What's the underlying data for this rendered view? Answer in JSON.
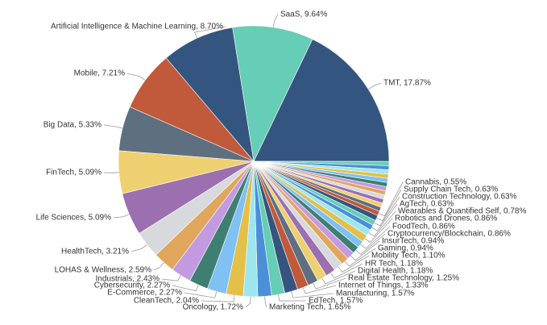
{
  "chart_data": {
    "type": "pie",
    "labels": [
      "TMT, 17.87%",
      null,
      null,
      null,
      null,
      null,
      null,
      null,
      null,
      null,
      null,
      null,
      null,
      "Cannabis, 0.55%",
      "Supply Chain Tech, 0.63%",
      "Construction Technology, 0.63%",
      "AgTech, 0.63%",
      "Wearables & Quantified Self, 0.78%",
      "Robotics and Drones, 0.86%",
      "FoodTech, 0.86%",
      "Cryptocurrency/Blockchain, 0.86%",
      "InsurTech, 0.94%",
      "Gaming, 0.94%",
      "Mobility Tech, 1.10%",
      "HR Tech, 1.18%",
      "Digital Health, 1.18%",
      "Real Estate Technology, 1.25%",
      "Internet of Things, 1.33%",
      "Manufacturing, 1.57%",
      "EdTech, 1.57%",
      "Marketing Tech, 1.65%",
      "Oncology, 1.72%",
      "CleanTech, 2.04%",
      "E-Commerce, 2.27%",
      "Cybersecurity, 2.27%",
      "Industrials, 2.43%",
      "LOHAS & Wellness, 2.59%",
      "HealthTech, 3.21%",
      "Life Sciences, 5.09%",
      "FinTech, 5.09%",
      "Big Data, 5.33%",
      "Mobile, 7.21%",
      "Artificial Intelligence & Machine Learning, 8.70%",
      "SaaS, 9.64%"
    ],
    "values": [
      17.87,
      0.5,
      0.5,
      0.5,
      0.5,
      0.5,
      0.5,
      0.5,
      0.5,
      0.5,
      0.5,
      0.5,
      0.5,
      0.55,
      0.63,
      0.63,
      0.63,
      0.78,
      0.86,
      0.86,
      0.86,
      0.94,
      0.94,
      1.1,
      1.18,
      1.18,
      1.25,
      1.33,
      1.57,
      1.57,
      1.65,
      1.72,
      2.04,
      2.27,
      2.27,
      2.43,
      2.59,
      3.21,
      5.09,
      5.09,
      5.33,
      7.21,
      8.7,
      9.64
    ],
    "colors": [
      "#34557f",
      "#66cdb6",
      "#4a8fd8",
      "#9de6ee",
      "#e3c04a",
      "#7ec1f2",
      "#3f7f72",
      "#c39ae0",
      "#e0a65c",
      "#d7d9dd",
      "#9b6fb0",
      "#efd070",
      "#5e6f80",
      "#c05a3a",
      "#34557f",
      "#66cdb6",
      "#4a8fd8",
      "#9de6ee",
      "#e3c04a",
      "#7ec1f2",
      "#3f7f72",
      "#c39ae0",
      "#e0a65c",
      "#d7d9dd",
      "#9b6fb0",
      "#efd070",
      "#5e6f80",
      "#c05a3a",
      "#34557f",
      "#66cdb6",
      "#4a8fd8",
      "#9de6ee",
      "#e3c04a",
      "#7ec1f2",
      "#3f7f72",
      "#c39ae0",
      "#e0a65c",
      "#d7d9dd",
      "#9b6fb0",
      "#efd070",
      "#5e6f80",
      "#c05a3a",
      "#34557f",
      "#66cdb6",
      "#4a8fd8",
      "#9de6ee",
      "#e3c04a",
      "#7ec1f2",
      "#3f7f72",
      "#c39ae0",
      "#e0a65c",
      "#d7d9dd",
      "#9b6fb0",
      "#efd070",
      "#5e6f80",
      "#66cdb6"
    ]
  }
}
